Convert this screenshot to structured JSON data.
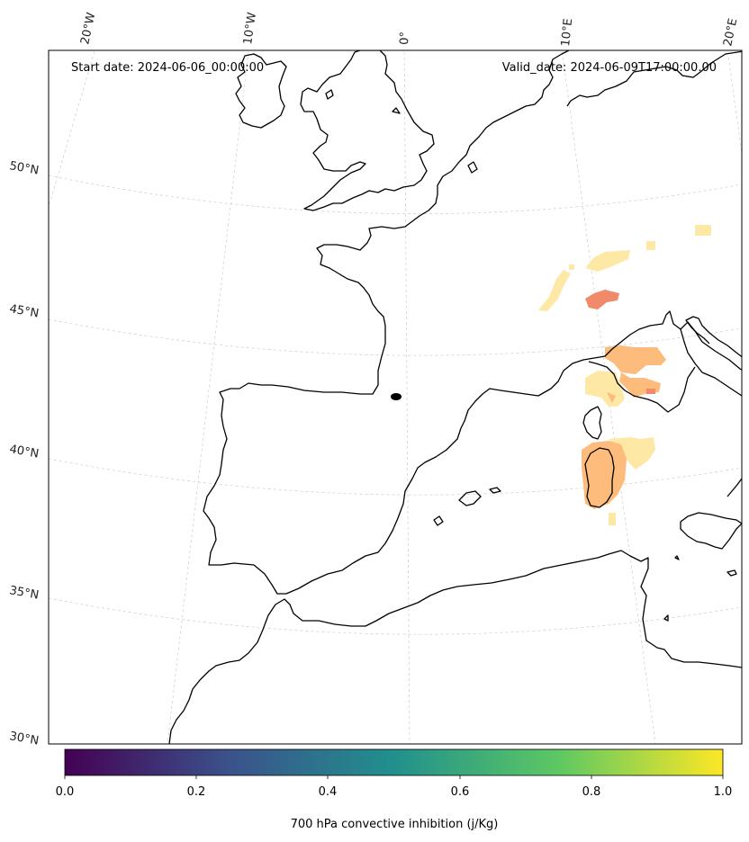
{
  "annotations": {
    "start_date": "Start date: 2024-06-06_00:00:00",
    "valid_date": "Valid_date: 2024-06-09T17:00:00.00"
  },
  "longitude_labels": [
    "20°W",
    "10°W",
    "0°",
    "10°E",
    "20°E"
  ],
  "latitude_labels": [
    "50°N",
    "45°N",
    "40°N",
    "35°N",
    "30°N"
  ],
  "colorbar": {
    "label": "700 hPa convective inhibition (j/Kg)",
    "ticks": [
      "0.0",
      "0.2",
      "0.4",
      "0.6",
      "0.8",
      "1.0"
    ],
    "colormap": "viridis",
    "stops": [
      "#440154",
      "#3b528b",
      "#21908d",
      "#5dc863",
      "#fde725"
    ]
  },
  "colors": {
    "coastline": "#000000",
    "gridline": "#cccccc",
    "field_light": "#fde8a6",
    "field_medium": "#fdbb7c",
    "field_strong": "#f08a6a"
  }
}
